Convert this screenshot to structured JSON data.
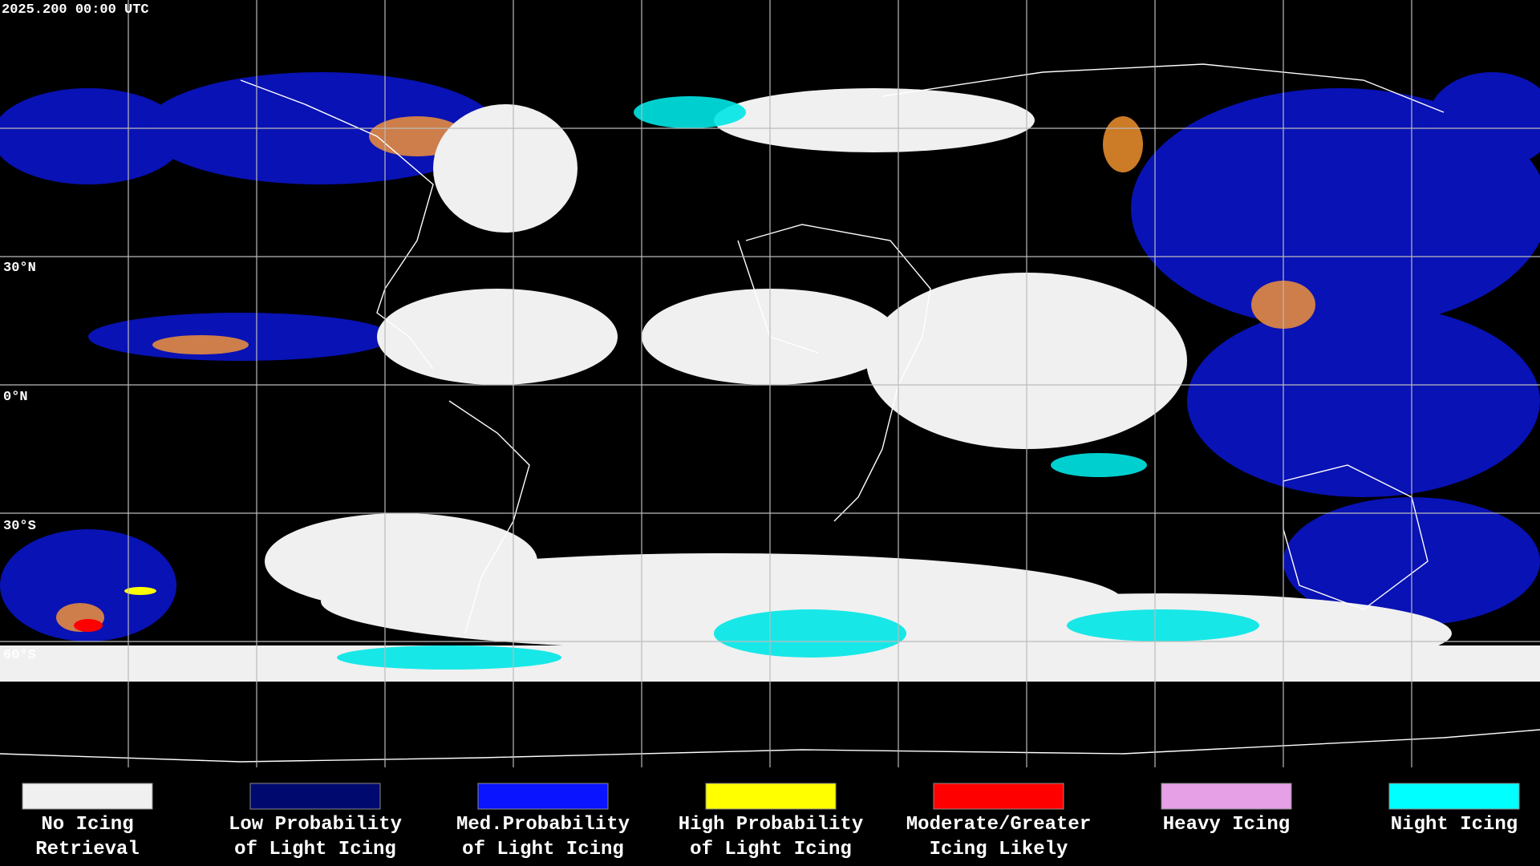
{
  "header": {
    "timestamp": "2025.200 00:00 UTC"
  },
  "map": {
    "latitude_labels": [
      "30°N",
      "0°N",
      "30°S",
      "60°S"
    ]
  },
  "legend": {
    "items": [
      {
        "color": "#f0f0f0",
        "label": [
          "No Icing",
          "Retrieval"
        ]
      },
      {
        "color": "#000a6e",
        "label": [
          "Low Probability",
          "of Light Icing"
        ]
      },
      {
        "color": "#0a14ff",
        "label": [
          "Med.Probability",
          "of Light Icing"
        ]
      },
      {
        "color": "#ffff00",
        "label": [
          "High Probability",
          "of Light Icing"
        ]
      },
      {
        "color": "#ff0000",
        "label": [
          "Moderate/Greater",
          "Icing Likely"
        ]
      },
      {
        "color": "#e6a0e6",
        "label": [
          "Heavy Icing"
        ]
      },
      {
        "color": "#00ffff",
        "label": [
          "Night Icing"
        ]
      }
    ]
  }
}
